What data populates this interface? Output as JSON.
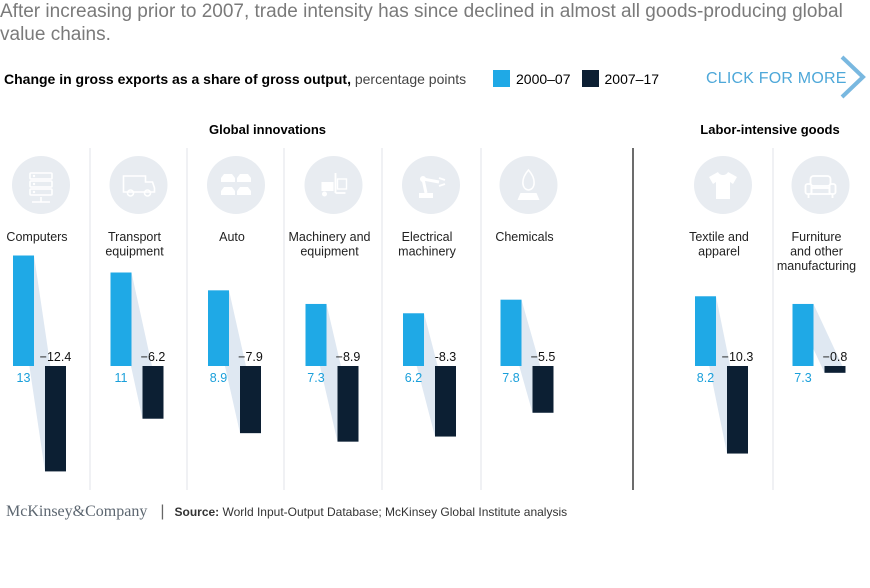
{
  "header": {
    "title": "After increasing prior to 2007, trade intensity has since declined in almost all goods-producing global value chains.",
    "subtitle_bold": "Change in gross exports as a share of gross output,",
    "subtitle_unit": "percentage points",
    "cta_label": "CLICK FOR MORE"
  },
  "colors": {
    "period1": "#1fa9e6",
    "period2": "#0c1f33",
    "connector": "#dfe8f2",
    "icon_bg": "#e8ecf1",
    "icon_fg": "#ffffff"
  },
  "chart_data": {
    "type": "bar",
    "series": [
      {
        "name": "2000–07",
        "color": "#1fa9e6"
      },
      {
        "name": "2007–17",
        "color": "#0c1f33"
      }
    ],
    "groups": [
      {
        "name": "Global innovations",
        "chains": [
          {
            "icon": "server-icon",
            "label": [
              "Computers"
            ],
            "values": [
              13,
              -12.4
            ],
            "labels": [
              "13",
              "−12.4"
            ]
          },
          {
            "icon": "truck-icon",
            "label": [
              "Transport",
              "equipment"
            ],
            "values": [
              11,
              -6.2
            ],
            "labels": [
              "11",
              "−6.2"
            ]
          },
          {
            "icon": "cars-icon",
            "label": [
              "Auto"
            ],
            "values": [
              8.9,
              -7.9
            ],
            "labels": [
              "8.9",
              "−7.9"
            ]
          },
          {
            "icon": "forklift-icon",
            "label": [
              "Machinery and",
              "equipment"
            ],
            "values": [
              7.3,
              -8.9
            ],
            "labels": [
              "7.3",
              "−8.9"
            ]
          },
          {
            "icon": "robot-arm-icon",
            "label": [
              "Electrical",
              "machinery"
            ],
            "values": [
              6.2,
              -8.3
            ],
            "labels": [
              "6.2",
              "-8.3"
            ]
          },
          {
            "icon": "flask-icon",
            "label": [
              "Chemicals"
            ],
            "values": [
              7.8,
              -5.5
            ],
            "labels": [
              "7.8",
              "−5.5"
            ]
          }
        ]
      },
      {
        "name": "Labor-intensive goods",
        "chains": [
          {
            "icon": "tshirt-icon",
            "label": [
              "Textile and",
              "apparel"
            ],
            "values": [
              8.2,
              -10.3
            ],
            "labels": [
              "8.2",
              "−10.3"
            ]
          },
          {
            "icon": "armchair-icon",
            "label": [
              "Furniture",
              "and other",
              "manufacturing"
            ],
            "values": [
              7.3,
              -0.8
            ],
            "labels": [
              "7.3",
              "−0.8"
            ]
          }
        ]
      }
    ]
  },
  "footer": {
    "logo": "McKinsey&Company",
    "source_label": "Source:",
    "source_text": "World Input-Output Database; McKinsey Global Institute analysis"
  }
}
